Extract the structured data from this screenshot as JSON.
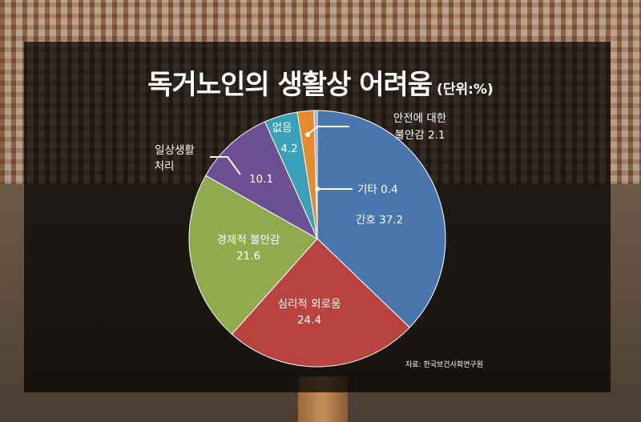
{
  "title": "독거노인의 생활상 어려움",
  "unit": "(단위:%)",
  "source": "자료: 한국보건사회연구원",
  "chart_data": {
    "type": "pie",
    "title": "독거노인의 생활상 어려움",
    "unit": "(단위:%)",
    "slices": [
      {
        "label": "간호",
        "value": 37.2,
        "color": "#4a76ae"
      },
      {
        "label": "심리적 외로움",
        "value": 24.4,
        "color": "#b8433f"
      },
      {
        "label": "경제적 불안감",
        "value": 21.6,
        "color": "#8fab4d"
      },
      {
        "label": "일상생활 처리",
        "value": 10.1,
        "color": "#6d4f94"
      },
      {
        "label": "없음",
        "value": 4.2,
        "color": "#3a9fb8"
      },
      {
        "label": "안전에 대한 불안감",
        "value": 2.1,
        "color": "#e68a2e"
      },
      {
        "label": "기타",
        "value": 0.4,
        "color": "#9aaed6"
      }
    ],
    "labels": {
      "care": {
        "line1": "간호 37.2"
      },
      "loneliness": {
        "line1": "심리적 외로움",
        "line2": "24.4"
      },
      "economic": {
        "line1": "경제적 불안감",
        "line2": "21.6"
      },
      "daily": {
        "line1": "일상생활",
        "line2": "처리",
        "line3": "10.1"
      },
      "none": {
        "line1": "없음",
        "line2": "4.2"
      },
      "safety": {
        "line1": "안전에 대한",
        "line2": "불안감 2.1"
      },
      "other": {
        "line1": "기타 0.4"
      }
    }
  }
}
